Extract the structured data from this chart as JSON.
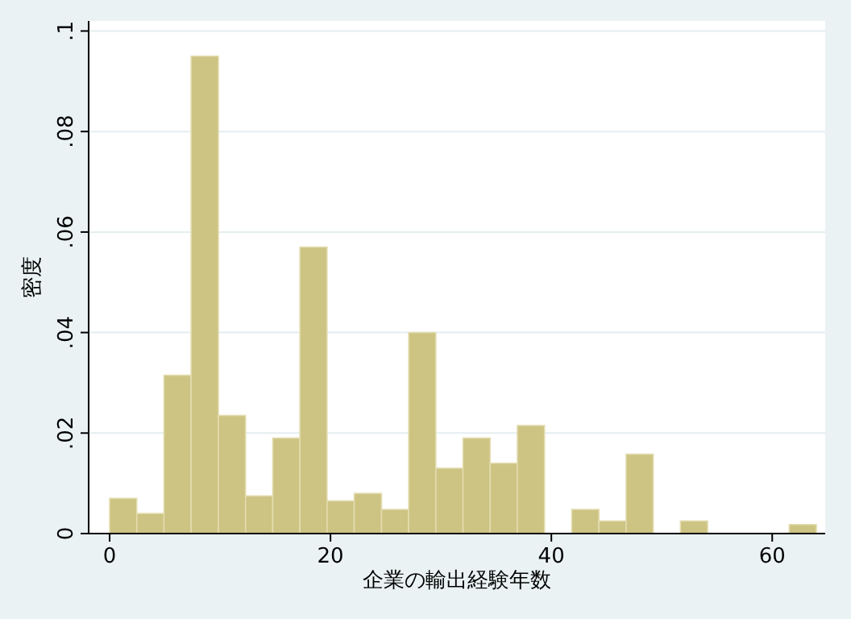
{
  "chart_data": {
    "type": "histogram",
    "xlabel": "企業の輸出経験年数",
    "ylabel": "密度",
    "bins": [
      0,
      2.46,
      4.92,
      7.38,
      9.85,
      12.31,
      14.77,
      17.23,
      19.69,
      22.15,
      24.62,
      27.08,
      29.54,
      32,
      34.46,
      36.92,
      39.38,
      41.85,
      44.31,
      46.77,
      49.23,
      51.69,
      54.15,
      56.62,
      59.08,
      61.54,
      64
    ],
    "values": [
      0.007,
      0.004,
      0.0315,
      0.095,
      0.0235,
      0.0075,
      0.019,
      0.057,
      0.0065,
      0.008,
      0.0048,
      0.04,
      0.013,
      0.019,
      0.014,
      0.0215,
      0,
      0.0048,
      0.0025,
      0.0158,
      0,
      0.0025,
      0,
      0,
      0,
      0.0018
    ],
    "color": "#cdc383",
    "xlim": [
      -1.9,
      64.8
    ],
    "xticks": [
      0,
      20,
      40,
      60
    ],
    "ylim": [
      0,
      0.102
    ],
    "yticks": [
      0,
      {
        "value": 0.02,
        "label": ".02"
      },
      {
        "value": 0.04,
        "label": ".04"
      },
      {
        "value": 0.06,
        "label": ".06"
      },
      {
        "value": 0.08,
        "label": ".08"
      },
      {
        "value": 0.1,
        "label": ".1"
      }
    ],
    "grid": "y"
  }
}
